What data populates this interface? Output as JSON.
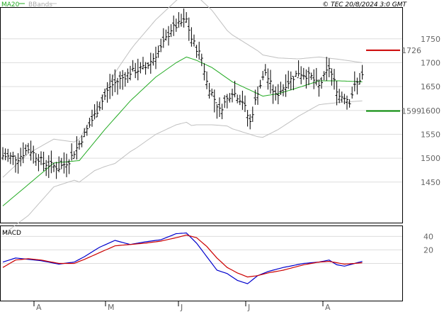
{
  "header": {
    "legend_ma": "MA20",
    "legend_bb": "BBands",
    "source": "© TEC 20/8/2024 3:0 GMT"
  },
  "colors": {
    "bars": "#000000",
    "ma": "#22aa22",
    "bbands": "#c0c0c0",
    "resistance": "#cc0000",
    "support": "#008800",
    "macd": "#0000cc",
    "signal": "#cc0000",
    "grid": "#dddddd"
  },
  "chart_data": [
    {
      "type": "ohlc",
      "legend": [
        "MA20",
        "BBands"
      ],
      "x_labels": [
        "A",
        "M",
        "J",
        "J",
        "A"
      ],
      "yticks": [
        1450,
        1500,
        1550,
        1600,
        1650,
        1700,
        1750
      ],
      "ylim": [
        1365,
        1815
      ],
      "grid": true,
      "levels": [
        {
          "label": "1726",
          "value": 1726,
          "color": "#cc0000"
        },
        {
          "label": "1599",
          "value": 1599,
          "color": "#008800"
        }
      ],
      "anchors": [
        [
          0,
          1505
        ],
        [
          6,
          1500
        ],
        [
          10,
          1520
        ],
        [
          16,
          1490
        ],
        [
          22,
          1480
        ],
        [
          26,
          1495
        ],
        [
          30,
          1530
        ],
        [
          36,
          1590
        ],
        [
          42,
          1650
        ],
        [
          50,
          1680
        ],
        [
          56,
          1690
        ],
        [
          62,
          1730
        ],
        [
          66,
          1770
        ],
        [
          72,
          1790
        ],
        [
          74,
          1750
        ],
        [
          78,
          1710
        ],
        [
          80,
          1660
        ],
        [
          85,
          1600
        ],
        [
          90,
          1640
        ],
        [
          94,
          1620
        ],
        [
          97,
          1575
        ],
        [
          100,
          1640
        ],
        [
          103,
          1680
        ],
        [
          107,
          1630
        ],
        [
          111,
          1655
        ],
        [
          116,
          1680
        ],
        [
          121,
          1670
        ],
        [
          124,
          1650
        ],
        [
          128,
          1690
        ],
        [
          130,
          1660
        ],
        [
          132,
          1630
        ],
        [
          134,
          1630
        ],
        [
          136,
          1620
        ],
        [
          138,
          1650
        ],
        [
          141,
          1673
        ]
      ],
      "ma_anchors": [
        [
          0,
          1400
        ],
        [
          10,
          1445
        ],
        [
          20,
          1490
        ],
        [
          30,
          1495
        ],
        [
          40,
          1560
        ],
        [
          50,
          1620
        ],
        [
          60,
          1670
        ],
        [
          68,
          1700
        ],
        [
          72,
          1712
        ],
        [
          76,
          1705
        ],
        [
          82,
          1690
        ],
        [
          90,
          1660
        ],
        [
          96,
          1645
        ],
        [
          102,
          1630
        ],
        [
          108,
          1635
        ],
        [
          116,
          1648
        ],
        [
          124,
          1662
        ],
        [
          132,
          1662
        ],
        [
          141,
          1660
        ]
      ],
      "bb_width": [
        [
          0,
          60
        ],
        [
          10,
          65
        ],
        [
          20,
          50
        ],
        [
          28,
          40
        ],
        [
          36,
          60
        ],
        [
          44,
          95
        ],
        [
          52,
          110
        ],
        [
          60,
          120
        ],
        [
          68,
          130
        ],
        [
          74,
          140
        ],
        [
          82,
          120
        ],
        [
          88,
          100
        ],
        [
          94,
          95
        ],
        [
          100,
          90
        ],
        [
          108,
          75
        ],
        [
          116,
          60
        ],
        [
          124,
          50
        ],
        [
          132,
          45
        ],
        [
          141,
          40
        ]
      ]
    },
    {
      "type": "line",
      "title": "MACD",
      "yticks": [
        20,
        40
      ],
      "ylim": [
        -55,
        55
      ],
      "grid": true,
      "series": [
        {
          "color": "#0000cc",
          "anchors": [
            [
              0,
              2
            ],
            [
              5,
              8
            ],
            [
              10,
              6
            ],
            [
              15,
              4
            ],
            [
              22,
              -1
            ],
            [
              28,
              2
            ],
            [
              32,
              10
            ],
            [
              38,
              24
            ],
            [
              44,
              34
            ],
            [
              50,
              28
            ],
            [
              56,
              32
            ],
            [
              62,
              35
            ],
            [
              68,
              44
            ],
            [
              72,
              45
            ],
            [
              76,
              30
            ],
            [
              80,
              10
            ],
            [
              84,
              -10
            ],
            [
              88,
              -15
            ],
            [
              92,
              -25
            ],
            [
              96,
              -30
            ],
            [
              100,
              -18
            ],
            [
              104,
              -12
            ],
            [
              110,
              -6
            ],
            [
              118,
              0
            ],
            [
              124,
              2
            ],
            [
              128,
              5
            ],
            [
              131,
              -2
            ],
            [
              134,
              -4
            ],
            [
              138,
              0
            ],
            [
              141,
              3
            ]
          ]
        },
        {
          "color": "#cc0000",
          "anchors": [
            [
              0,
              -6
            ],
            [
              5,
              5
            ],
            [
              10,
              7
            ],
            [
              15,
              5
            ],
            [
              22,
              0
            ],
            [
              28,
              0
            ],
            [
              32,
              6
            ],
            [
              38,
              16
            ],
            [
              44,
              26
            ],
            [
              50,
              28
            ],
            [
              56,
              30
            ],
            [
              62,
              33
            ],
            [
              68,
              38
            ],
            [
              72,
              42
            ],
            [
              76,
              38
            ],
            [
              80,
              25
            ],
            [
              84,
              8
            ],
            [
              88,
              -6
            ],
            [
              92,
              -14
            ],
            [
              96,
              -20
            ],
            [
              100,
              -18
            ],
            [
              104,
              -14
            ],
            [
              110,
              -10
            ],
            [
              118,
              -2
            ],
            [
              124,
              2
            ],
            [
              128,
              3
            ],
            [
              131,
              1
            ],
            [
              134,
              -1
            ],
            [
              138,
              0
            ],
            [
              141,
              1
            ]
          ]
        }
      ]
    }
  ]
}
